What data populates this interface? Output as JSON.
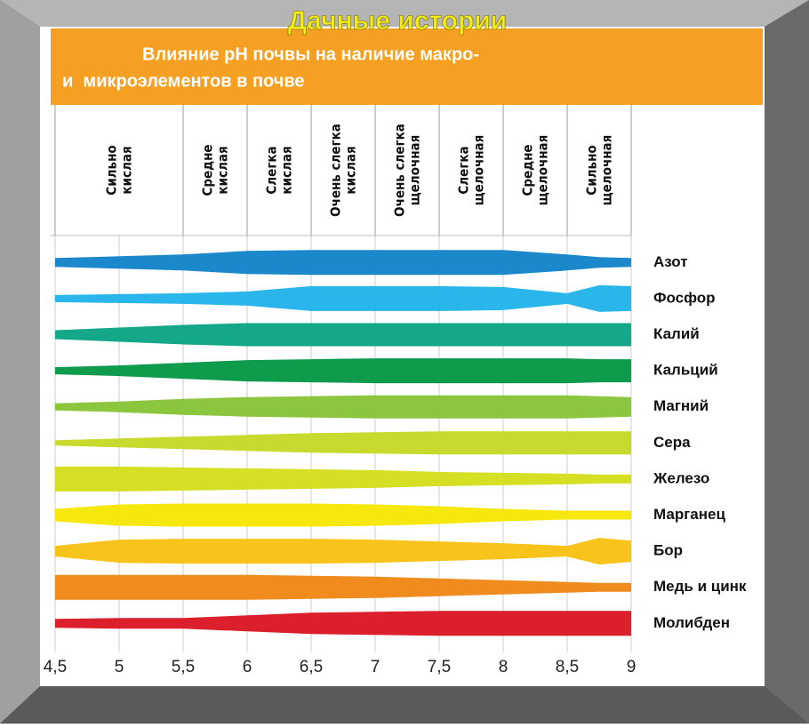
{
  "chart_data": {
    "type": "band",
    "watermark": "Дачные истории",
    "title_lines": [
      "Влияние pH почвы на наличие макро-",
      "и  микроэлементов в почве"
    ],
    "xlim": [
      4.5,
      9
    ],
    "xticks": [
      {
        "value": 4.5,
        "label": "4,5"
      },
      5,
      {
        "value": 5.5,
        "label": "5,5"
      },
      6,
      {
        "value": 6.5,
        "label": "6,5"
      },
      7,
      {
        "value": 7.5,
        "label": "7,5"
      },
      8,
      {
        "value": 8.5,
        "label": "8,5"
      },
      9
    ],
    "zones": [
      {
        "lines": [
          "Сильно",
          "кислая"
        ],
        "from": 4.5,
        "to": 5.5
      },
      {
        "lines": [
          "Средне",
          "кислая"
        ],
        "from": 5.5,
        "to": 6
      },
      {
        "lines": [
          "Слегка",
          "кислая"
        ],
        "from": 6,
        "to": 6.5
      },
      {
        "lines": [
          "Очень слегка",
          "кислая"
        ],
        "from": 6.5,
        "to": 7
      },
      {
        "lines": [
          "Очень слегка",
          "щелочная"
        ],
        "from": 7,
        "to": 7.5
      },
      {
        "lines": [
          "Слегка",
          "щелочная"
        ],
        "from": 7.5,
        "to": 8
      },
      {
        "lines": [
          "Средне",
          "щелочная"
        ],
        "from": 8,
        "to": 8.5
      },
      {
        "lines": [
          "Сильно",
          "щелочная"
        ],
        "from": 8.5,
        "to": 9
      }
    ],
    "x": [
      4.5,
      5,
      5.5,
      6,
      6.5,
      7,
      7.5,
      8,
      8.5,
      8.75,
      9
    ],
    "series": [
      {
        "name": "Азот",
        "color": "#1b88cc",
        "values": [
          10,
          14,
          18,
          26,
          28,
          28,
          28,
          28,
          18,
          12,
          10
        ]
      },
      {
        "name": "Фосфор",
        "color": "#2ab6ea",
        "values": [
          8,
          10,
          12,
          16,
          28,
          28,
          28,
          26,
          12,
          30,
          28
        ]
      },
      {
        "name": "Калий",
        "color": "#14a889",
        "values": [
          10,
          16,
          22,
          26,
          26,
          26,
          26,
          26,
          26,
          26,
          26
        ]
      },
      {
        "name": "Кальций",
        "color": "#0f9b4c",
        "values": [
          8,
          12,
          18,
          24,
          26,
          28,
          28,
          28,
          28,
          26,
          26
        ]
      },
      {
        "name": "Магний",
        "color": "#8cc63f",
        "values": [
          8,
          12,
          18,
          22,
          24,
          26,
          26,
          26,
          26,
          24,
          22
        ]
      },
      {
        "name": "Сера",
        "color": "#c8da2e",
        "values": [
          6,
          10,
          14,
          18,
          22,
          24,
          26,
          26,
          26,
          26,
          26
        ]
      },
      {
        "name": "Железо",
        "color": "#d5df24",
        "values": [
          28,
          28,
          26,
          24,
          22,
          20,
          16,
          14,
          12,
          10,
          10
        ]
      },
      {
        "name": "Марганец",
        "color": "#f6e70c",
        "values": [
          14,
          24,
          26,
          26,
          26,
          24,
          20,
          14,
          10,
          10,
          10
        ]
      },
      {
        "name": "Бор",
        "color": "#f8c31b",
        "values": [
          12,
          26,
          28,
          28,
          28,
          26,
          22,
          18,
          12,
          30,
          24
        ]
      },
      {
        "name": "Медь и цинк",
        "color": "#f08b1d",
        "values": [
          28,
          28,
          28,
          28,
          26,
          24,
          20,
          16,
          12,
          10,
          10
        ]
      },
      {
        "name": "Молибден",
        "color": "#db1f2d",
        "values": [
          10,
          12,
          12,
          18,
          24,
          26,
          28,
          28,
          28,
          28,
          28
        ]
      }
    ]
  }
}
